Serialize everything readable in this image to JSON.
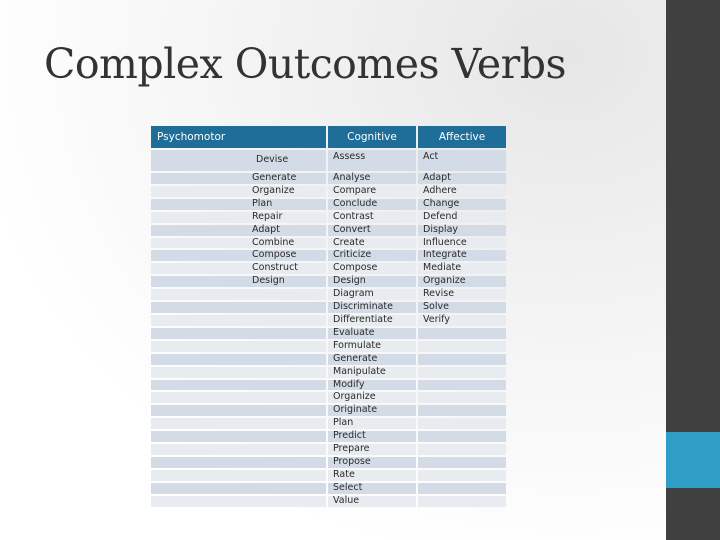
{
  "slide": {
    "title": "Complex Outcomes Verbs"
  },
  "table": {
    "headers": [
      "Psychomotor",
      "Cognitive",
      "Affective"
    ],
    "rows": [
      [
        "Devise",
        "Assess",
        "Act"
      ],
      [
        "Generate",
        "Analyse",
        "Adapt"
      ],
      [
        "Organize",
        "Compare",
        "Adhere"
      ],
      [
        "Plan",
        "Conclude",
        "Change"
      ],
      [
        "Repair",
        "Contrast",
        "Defend"
      ],
      [
        "Adapt",
        "Convert",
        "Display"
      ],
      [
        "Combine",
        "Create",
        "Influence"
      ],
      [
        "Compose",
        "Criticize",
        "Integrate"
      ],
      [
        "Construct",
        "Compose",
        "Mediate"
      ],
      [
        "Design",
        "Design",
        "Organize"
      ],
      [
        "",
        "Diagram",
        "Revise"
      ],
      [
        "",
        "Discriminate",
        "Solve"
      ],
      [
        "",
        "Differentiate",
        "Verify"
      ],
      [
        "",
        "Evaluate",
        ""
      ],
      [
        "",
        "Formulate",
        ""
      ],
      [
        "",
        "Generate",
        ""
      ],
      [
        "",
        "Manipulate",
        ""
      ],
      [
        "",
        "Modify",
        ""
      ],
      [
        "",
        "Organize",
        ""
      ],
      [
        "",
        "Originate",
        ""
      ],
      [
        "",
        "Plan",
        ""
      ],
      [
        "",
        "Predict",
        ""
      ],
      [
        "",
        "Prepare",
        ""
      ],
      [
        "",
        "Propose",
        ""
      ],
      [
        "",
        "Rate",
        ""
      ],
      [
        "",
        "Select",
        ""
      ],
      [
        "",
        "Value",
        ""
      ]
    ]
  },
  "colors": {
    "header_bg": "#1e6e99",
    "row_bg": "#d3dce6",
    "row_alt_bg": "#e8ecf1",
    "sidebar": "#404040",
    "sidebar_accent": "#2e9ec7"
  }
}
